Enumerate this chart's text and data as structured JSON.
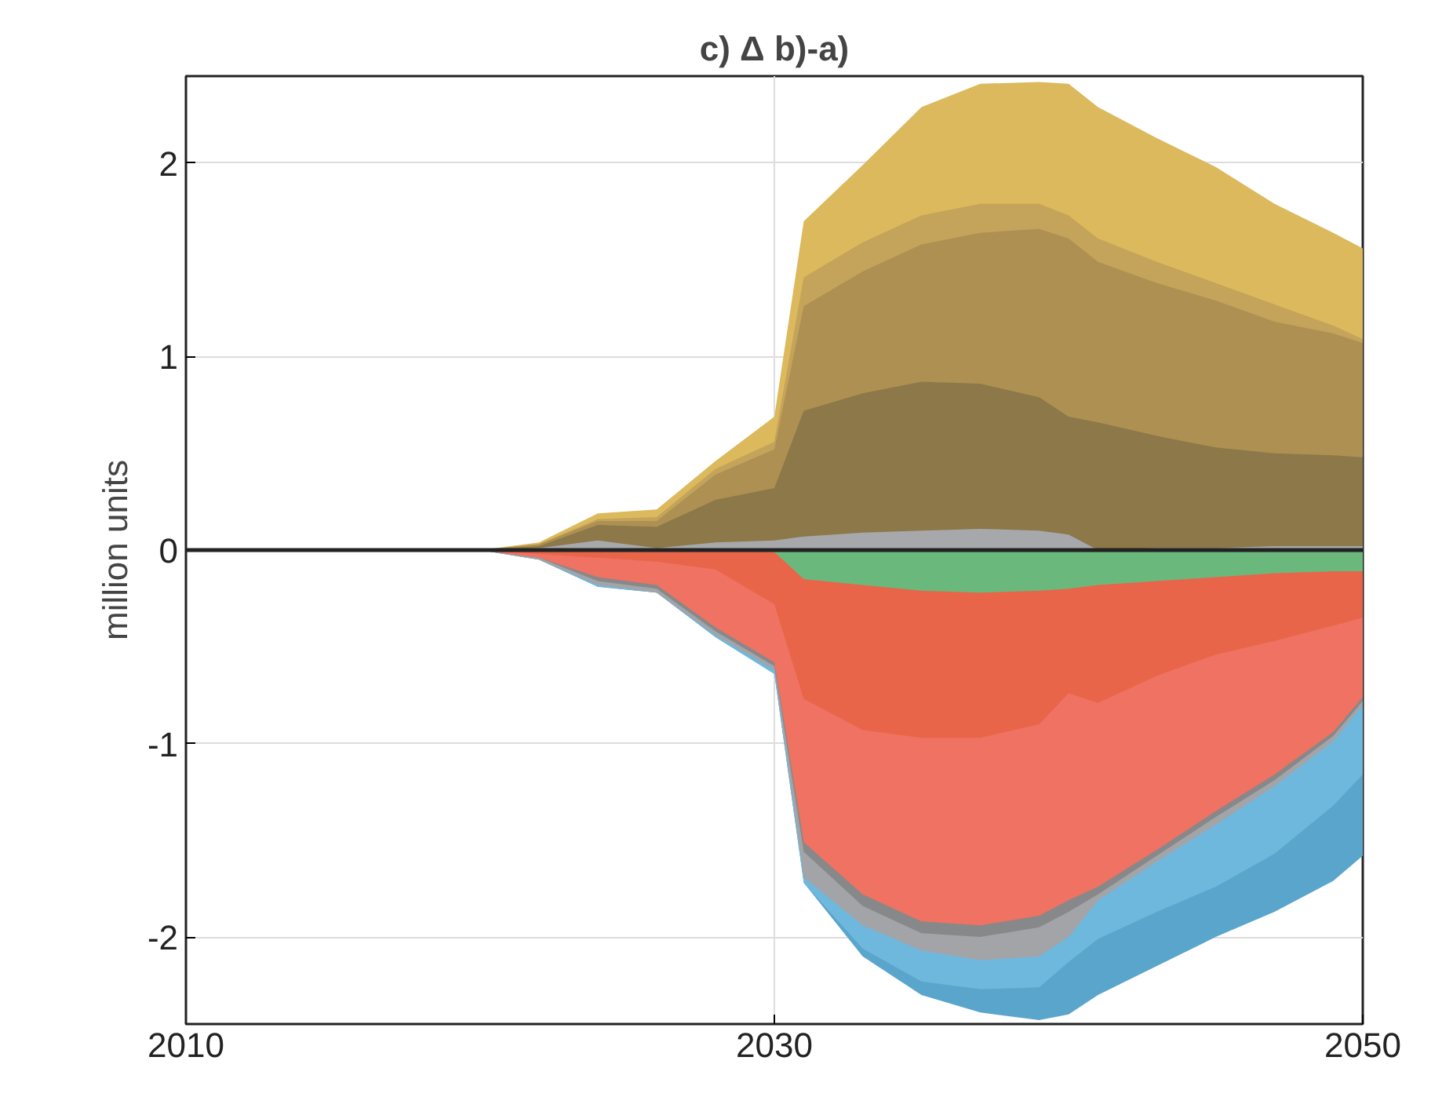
{
  "chart_data": {
    "type": "area",
    "title": "c) Δ b)-a)",
    "ylabel": "million units",
    "x": [
      2020,
      2022,
      2024,
      2026,
      2028,
      2030,
      2031,
      2033,
      2035,
      2037,
      2039,
      2040,
      2041,
      2043,
      2045,
      2047,
      2049,
      2050
    ],
    "xlim": [
      2010,
      2050
    ],
    "xticks": [
      2010,
      2030,
      2050
    ],
    "ylim": [
      -2.45,
      2.45
    ],
    "yticks": [
      -2,
      -1,
      0,
      1,
      2
    ],
    "grid": true,
    "ref_lines": [
      {
        "axis": "y",
        "value": 0,
        "color": "#222222"
      }
    ],
    "series": [
      {
        "color": "#dbb95c",
        "values": [
          0,
          0.04,
          0.19,
          0.21,
          0.46,
          0.69,
          1.7,
          1.99,
          2.29,
          2.41,
          2.42,
          2.41,
          2.29,
          2.13,
          1.98,
          1.79,
          1.64,
          1.56
        ]
      },
      {
        "color": "#c4a35a",
        "values": [
          0,
          0.03,
          0.16,
          0.17,
          0.42,
          0.56,
          1.41,
          1.59,
          1.73,
          1.79,
          1.79,
          1.73,
          1.61,
          1.49,
          1.38,
          1.27,
          1.16,
          1.09
        ]
      },
      {
        "color": "#ad9052",
        "values": [
          0,
          0.03,
          0.15,
          0.15,
          0.39,
          0.52,
          1.26,
          1.44,
          1.58,
          1.64,
          1.66,
          1.61,
          1.49,
          1.38,
          1.29,
          1.18,
          1.12,
          1.07
        ]
      },
      {
        "color": "#8c7848",
        "values": [
          0,
          0.02,
          0.13,
          0.12,
          0.26,
          0.32,
          0.72,
          0.81,
          0.87,
          0.86,
          0.79,
          0.69,
          0.66,
          0.59,
          0.53,
          0.5,
          0.49,
          0.48
        ]
      },
      {
        "color": "#a7a8ab",
        "values": [
          0,
          0.01,
          0.05,
          0.01,
          0.04,
          0.05,
          0.07,
          0.09,
          0.1,
          0.11,
          0.1,
          0.08,
          0.0,
          0.01,
          0.01,
          0.02,
          0.02,
          0.02
        ]
      },
      {
        "color": "#5aa5cc",
        "values": [
          0,
          -0.05,
          -0.19,
          -0.22,
          -0.45,
          -0.64,
          -1.72,
          -2.1,
          -2.3,
          -2.39,
          -2.43,
          -2.4,
          -2.3,
          -2.15,
          -2.0,
          -1.87,
          -1.71,
          -1.58
        ]
      },
      {
        "color": "#6fb8dd",
        "values": [
          0,
          -0.05,
          -0.19,
          -0.22,
          -0.45,
          -0.64,
          -1.72,
          -2.06,
          -2.23,
          -2.27,
          -2.26,
          -2.13,
          -2.01,
          -1.87,
          -1.74,
          -1.57,
          -1.32,
          -1.16
        ]
      },
      {
        "color": "#a3a4a7",
        "values": [
          0,
          -0.05,
          -0.18,
          -0.22,
          -0.44,
          -0.62,
          -1.69,
          -1.94,
          -2.07,
          -2.12,
          -2.1,
          -2.0,
          -1.81,
          -1.61,
          -1.42,
          -1.22,
          -0.99,
          -0.8
        ]
      },
      {
        "color": "#87888a",
        "values": [
          0,
          -0.04,
          -0.16,
          -0.2,
          -0.42,
          -0.6,
          -1.56,
          -1.84,
          -1.98,
          -2.0,
          -1.95,
          -1.87,
          -1.78,
          -1.58,
          -1.38,
          -1.19,
          -0.96,
          -0.78
        ]
      },
      {
        "color": "#ef7262",
        "values": [
          0,
          -0.04,
          -0.14,
          -0.18,
          -0.4,
          -0.58,
          -1.51,
          -1.78,
          -1.92,
          -1.94,
          -1.89,
          -1.81,
          -1.74,
          -1.55,
          -1.35,
          -1.16,
          -0.94,
          -0.76
        ]
      },
      {
        "color": "#e9654a",
        "values": [
          0,
          -0.02,
          -0.04,
          -0.06,
          -0.1,
          -0.28,
          -0.77,
          -0.93,
          -0.97,
          -0.97,
          -0.9,
          -0.74,
          -0.79,
          -0.65,
          -0.54,
          -0.47,
          -0.39,
          -0.35
        ]
      },
      {
        "color": "#6bb87d",
        "values": [
          0,
          0,
          0,
          0,
          0,
          -0.01,
          -0.15,
          -0.18,
          -0.21,
          -0.22,
          -0.21,
          -0.2,
          -0.18,
          -0.16,
          -0.14,
          -0.12,
          -0.11,
          -0.11
        ]
      }
    ]
  }
}
